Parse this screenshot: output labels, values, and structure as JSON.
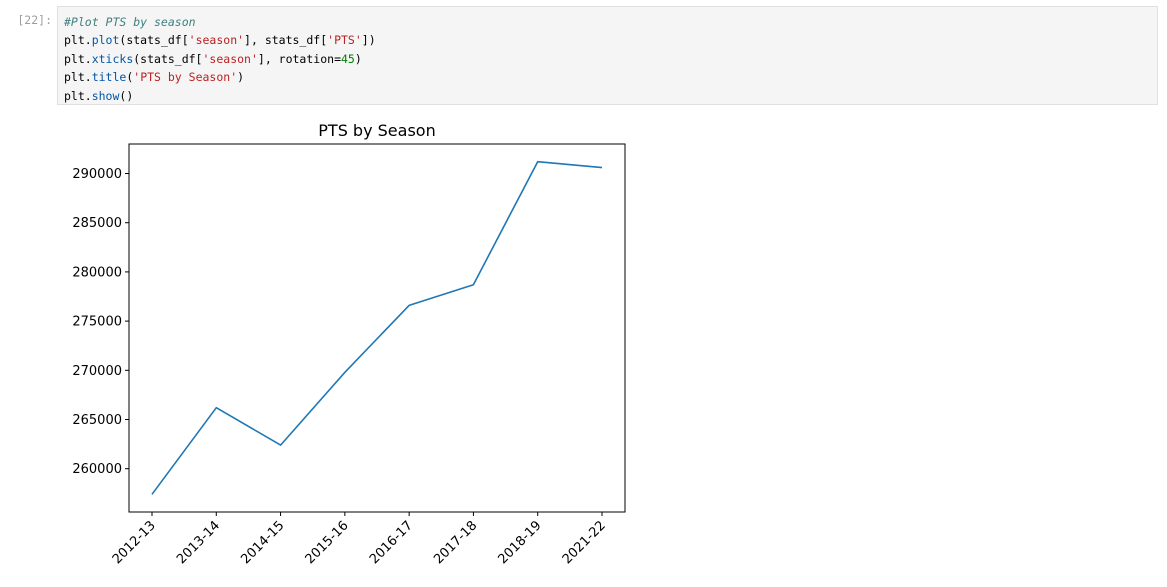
{
  "cell": {
    "prompt": "[22]:",
    "code": {
      "comment": "#Plot PTS by season",
      "line2_pre": "plt.",
      "line2_fn": "plot",
      "line2_a": "(stats_df[",
      "line2_s1": "'season'",
      "line2_b": "], stats_df[",
      "line2_s2": "'PTS'",
      "line2_c": "])",
      "line3_pre": "plt.",
      "line3_fn": "xticks",
      "line3_a": "(stats_df[",
      "line3_s1": "'season'",
      "line3_b": "], rotation",
      "line3_eq": "=",
      "line3_num": "45",
      "line3_c": ")",
      "line4_pre": "plt.",
      "line4_fn": "title",
      "line4_a": "(",
      "line4_s1": "'PTS by Season'",
      "line4_c": ")",
      "line5_pre": "plt.",
      "line5_fn": "show",
      "line5_c": "()"
    }
  },
  "colors": {
    "line": "#1f77b4",
    "axis": "#000000"
  },
  "chart_data": {
    "type": "line",
    "title": "PTS by Season",
    "xlabel": "",
    "ylabel": "",
    "categories": [
      "2012-13",
      "2013-14",
      "2014-15",
      "2015-16",
      "2016-17",
      "2017-18",
      "2018-19",
      "2021-22"
    ],
    "values": [
      257400,
      266200,
      262400,
      269800,
      276600,
      278700,
      291200,
      290600
    ],
    "yticks": [
      260000,
      265000,
      270000,
      275000,
      280000,
      285000,
      290000
    ],
    "ylim": [
      255600,
      293000
    ],
    "xtick_rotation": 45,
    "grid": false
  }
}
